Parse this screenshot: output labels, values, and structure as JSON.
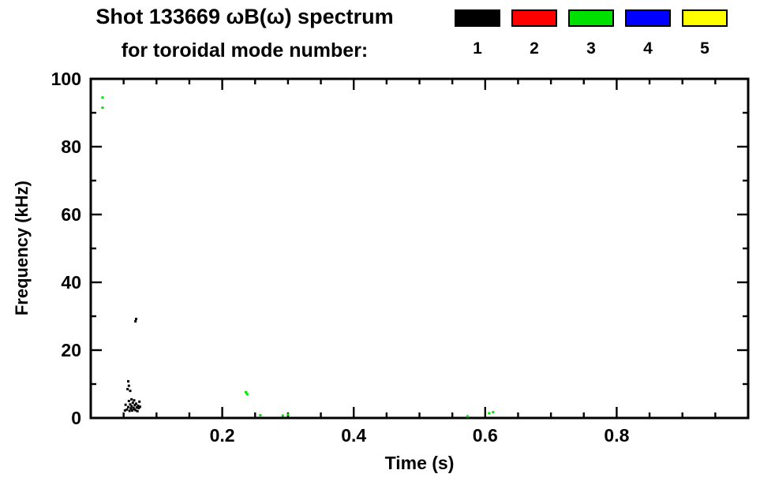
{
  "chart_data": {
    "type": "scatter",
    "title": "Shot 133669 ωB(ω) spectrum",
    "subtitle": "for toroidal mode number:",
    "xlabel": "Time (s)",
    "ylabel": "Frequency (kHz)",
    "xlim": [
      0,
      1.0
    ],
    "ylim": [
      0,
      100
    ],
    "xticks": [
      0.2,
      0.4,
      0.6,
      0.8
    ],
    "yticks": [
      0,
      20,
      40,
      60,
      80,
      100
    ],
    "x_minor_step": 0.05,
    "y_minor_step": 10,
    "grid": false,
    "legend_position": "top-right",
    "legend": [
      {
        "label": "1",
        "color": "#000000"
      },
      {
        "label": "2",
        "color": "#ff0000"
      },
      {
        "label": "3",
        "color": "#00e000"
      },
      {
        "label": "4",
        "color": "#0000ff"
      },
      {
        "label": "5",
        "color": "#ffff00"
      }
    ],
    "series": [
      {
        "name": "n1",
        "color": "#000000",
        "points": [
          [
            0.052,
            2.2
          ],
          [
            0.053,
            3.9
          ],
          [
            0.055,
            2.5
          ],
          [
            0.056,
            8.5
          ],
          [
            0.057,
            3.2
          ],
          [
            0.057,
            10.8
          ],
          [
            0.058,
            5.0
          ],
          [
            0.058,
            9.5
          ],
          [
            0.059,
            2.1
          ],
          [
            0.06,
            4.0
          ],
          [
            0.06,
            8.0
          ],
          [
            0.061,
            2.8
          ],
          [
            0.062,
            3.5
          ],
          [
            0.062,
            5.5
          ],
          [
            0.063,
            2.2
          ],
          [
            0.064,
            4.5
          ],
          [
            0.065,
            3.0
          ],
          [
            0.066,
            2.6
          ],
          [
            0.066,
            5.2
          ],
          [
            0.067,
            3.8
          ],
          [
            0.068,
            2.3
          ],
          [
            0.068,
            28.5
          ],
          [
            0.069,
            4.2
          ],
          [
            0.069,
            29.2
          ],
          [
            0.07,
            3.1
          ],
          [
            0.071,
            2.0
          ],
          [
            0.072,
            3.6
          ],
          [
            0.073,
            2.9
          ],
          [
            0.074,
            4.8
          ],
          [
            0.075,
            3.3
          ]
        ]
      },
      {
        "name": "n3",
        "color": "#00e000",
        "points": [
          [
            0.018,
            94.5
          ],
          [
            0.018,
            91.5
          ],
          [
            0.236,
            7.6
          ],
          [
            0.238,
            7.0
          ],
          [
            0.258,
            0.8
          ],
          [
            0.292,
            0.7
          ],
          [
            0.3,
            1.0
          ],
          [
            0.573,
            0.5
          ],
          [
            0.606,
            1.4
          ],
          [
            0.612,
            1.7
          ]
        ]
      }
    ]
  }
}
